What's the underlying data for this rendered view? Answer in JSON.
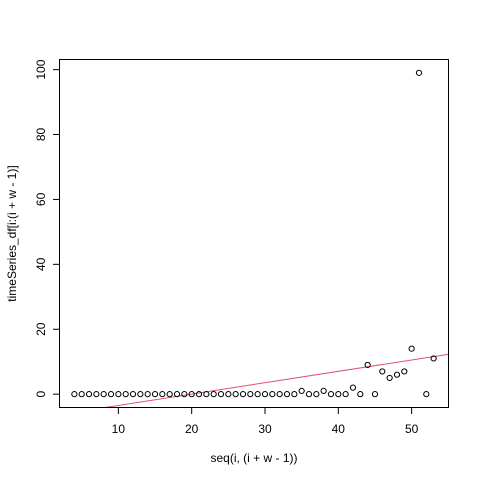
{
  "chart_data": {
    "type": "scatter",
    "title": "",
    "xlabel": "seq(i, (i + w - 1))",
    "ylabel": "timeSeries_df[i:(i + w - 1)]",
    "xlim": [
      2.04,
      54.96
    ],
    "ylim": [
      -3.96,
      102.96
    ],
    "grid": false,
    "x_ticks": [
      10,
      20,
      30,
      40,
      50
    ],
    "y_ticks": [
      0,
      20,
      40,
      60,
      80,
      100
    ],
    "x_tick_labels": [
      "10",
      "20",
      "30",
      "40",
      "50"
    ],
    "y_tick_labels": [
      "0",
      "20",
      "40",
      "60",
      "80",
      "100"
    ],
    "series": [
      {
        "name": "points",
        "marker": "open-circle",
        "color": "#000000",
        "x": [
          4,
          5,
          6,
          7,
          8,
          9,
          10,
          11,
          12,
          13,
          14,
          15,
          16,
          17,
          18,
          19,
          20,
          21,
          22,
          23,
          24,
          25,
          26,
          27,
          28,
          29,
          30,
          31,
          32,
          33,
          34,
          35,
          36,
          37,
          38,
          39,
          40,
          41,
          42,
          43,
          44,
          45,
          46,
          47,
          48,
          49,
          50,
          51,
          52,
          53
        ],
        "y": [
          0,
          0,
          0,
          0,
          0,
          0,
          0,
          0,
          0,
          0,
          0,
          0,
          0,
          0,
          0,
          0,
          0,
          0,
          0,
          0,
          0,
          0,
          0,
          0,
          0,
          0,
          0,
          0,
          0,
          0,
          0,
          1,
          0,
          0,
          1,
          0,
          0,
          0,
          2,
          0,
          9,
          0,
          7,
          5,
          6,
          7,
          14,
          99,
          0,
          11
        ]
      }
    ],
    "lines": [
      {
        "name": "fit-line",
        "color": "#DF536B",
        "x": [
          2.04,
          54.96
        ],
        "y": [
          -6.27,
          12.27
        ]
      }
    ]
  }
}
